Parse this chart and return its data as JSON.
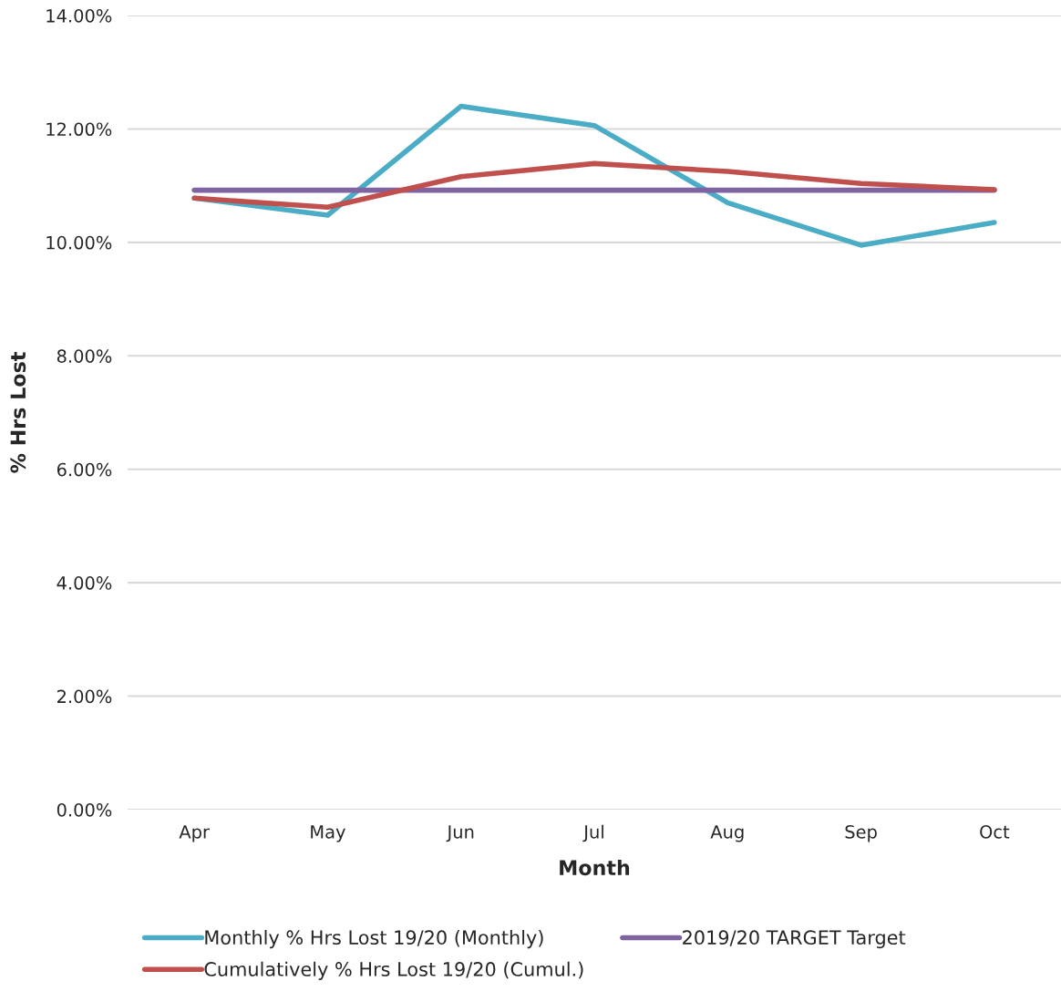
{
  "chart_data": {
    "type": "line",
    "xlabel": "Month",
    "ylabel": "% Hrs Lost",
    "categories": [
      "Apr",
      "May",
      "Jun",
      "Jul",
      "Aug",
      "Sep",
      "Oct"
    ],
    "series": [
      {
        "name": "Monthly % Hrs Lost 19/20 (Monthly)",
        "color": "#4bacc6",
        "values": [
          10.78,
          10.48,
          12.4,
          12.06,
          10.7,
          9.95,
          10.35
        ]
      },
      {
        "name": "2019/20 TARGET Target",
        "color": "#8064a2",
        "values": [
          10.92,
          10.92,
          10.92,
          10.92,
          10.92,
          10.92,
          10.92
        ]
      },
      {
        "name": "Cumulatively % Hrs Lost 19/20 (Cumul.)",
        "color": "#c0504d",
        "values": [
          10.78,
          10.62,
          11.16,
          11.39,
          11.25,
          11.04,
          10.93
        ]
      }
    ],
    "ylim": [
      0,
      14
    ],
    "yticks": [
      {
        "value": 0,
        "label": "0.00%"
      },
      {
        "value": 2,
        "label": "2.00%"
      },
      {
        "value": 4,
        "label": "4.00%"
      },
      {
        "value": 6,
        "label": "6.00%"
      },
      {
        "value": 8,
        "label": "8.00%"
      },
      {
        "value": 10,
        "label": "10.00%"
      },
      {
        "value": 12,
        "label": "12.00%"
      },
      {
        "value": 14,
        "label": "14.00%"
      }
    ],
    "grid": "y",
    "legend": "bottom",
    "marker": "none",
    "line_style": "solid"
  }
}
